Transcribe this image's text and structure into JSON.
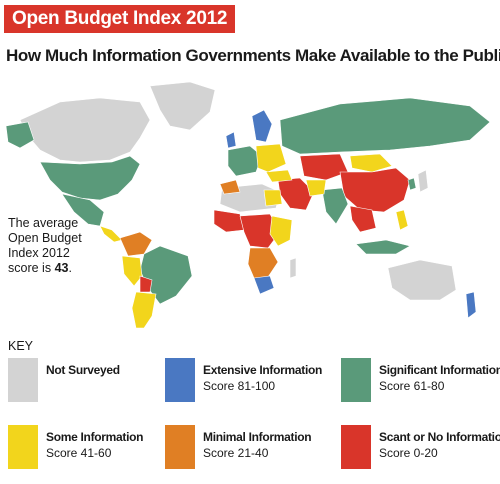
{
  "banner_title": "Open Budget Index 2012",
  "subtitle": "How Much Information Governments Make Available to the Public",
  "average_note": {
    "lines": [
      "The average",
      "Open Budget",
      "Index 2012"
    ],
    "prefix": "score is",
    "value": "43",
    "suffix": "."
  },
  "key": {
    "title": "KEY",
    "items": [
      {
        "label": "Not Surveyed",
        "range": "",
        "color": "#d3d3d3"
      },
      {
        "label": "Extensive Information",
        "range": "Score 81-100",
        "color": "#4a78c2"
      },
      {
        "label": "Significant Information",
        "range": "Score 61-80",
        "color": "#5a9a7a"
      },
      {
        "label": "Some Information",
        "range": "Score 41-60",
        "color": "#f2d51c"
      },
      {
        "label": "Minimal Information",
        "range": "Score 21-40",
        "color": "#e07f24"
      },
      {
        "label": "Scant or No Information",
        "range": "Score 0-20",
        "color": "#d9352a"
      }
    ]
  },
  "colors": {
    "banner": "#d9352a",
    "not_surveyed": "#d3d3d3",
    "extensive": "#4a78c2",
    "significant": "#5a9a7a",
    "some": "#f2d51c",
    "minimal": "#e07f24",
    "scant": "#d9352a"
  }
}
